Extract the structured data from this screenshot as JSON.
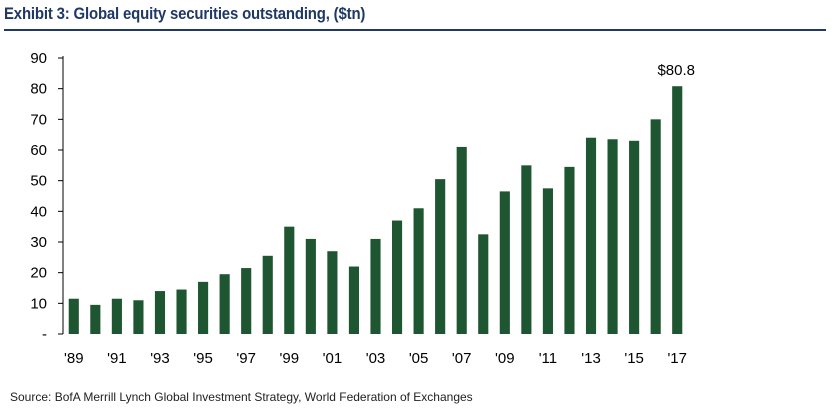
{
  "title": "Exhibit 3: Global equity securities outstanding, ($tn)",
  "source": "Source:  BofA Merrill Lynch Global Investment Strategy, World Federation of Exchanges",
  "colors": {
    "bar": "#1e5631",
    "title": "#1f3864",
    "axis": "#000000"
  },
  "chart_data": {
    "type": "bar",
    "title": "Exhibit 3: Global equity securities outstanding, ($tn)",
    "xlabel": "",
    "ylabel": "",
    "ylim": [
      0,
      90
    ],
    "yticks": [
      0,
      10,
      20,
      30,
      40,
      50,
      60,
      70,
      80,
      90
    ],
    "ytick_labels": [
      "-",
      "10",
      "20",
      "30",
      "40",
      "50",
      "60",
      "70",
      "80",
      "90"
    ],
    "categories": [
      "1989",
      "1990",
      "1991",
      "1992",
      "1993",
      "1994",
      "1995",
      "1996",
      "1997",
      "1998",
      "1999",
      "2000",
      "2001",
      "2002",
      "2003",
      "2004",
      "2005",
      "2006",
      "2007",
      "2008",
      "2009",
      "2010",
      "2011",
      "2012",
      "2013",
      "2014",
      "2015",
      "2016",
      "2017"
    ],
    "xtick_labels": [
      "'89",
      "",
      "'91",
      "",
      "'93",
      "",
      "'95",
      "",
      "'97",
      "",
      "'99",
      "",
      "'01",
      "",
      "'03",
      "",
      "'05",
      "",
      "'07",
      "",
      "'09",
      "",
      "'11",
      "",
      "'13",
      "",
      "'15",
      "",
      "'17"
    ],
    "values": [
      11.5,
      9.5,
      11.5,
      11,
      14,
      14.5,
      17,
      19.5,
      21.5,
      25.5,
      35,
      31,
      27,
      22,
      31,
      37,
      41,
      50.5,
      61,
      32.5,
      46.5,
      55,
      47.5,
      54.5,
      64,
      63.5,
      63,
      70,
      80.8
    ],
    "annotations": [
      {
        "category": "2017",
        "text": "$80.8"
      }
    ],
    "grid": false,
    "legend": "none"
  }
}
